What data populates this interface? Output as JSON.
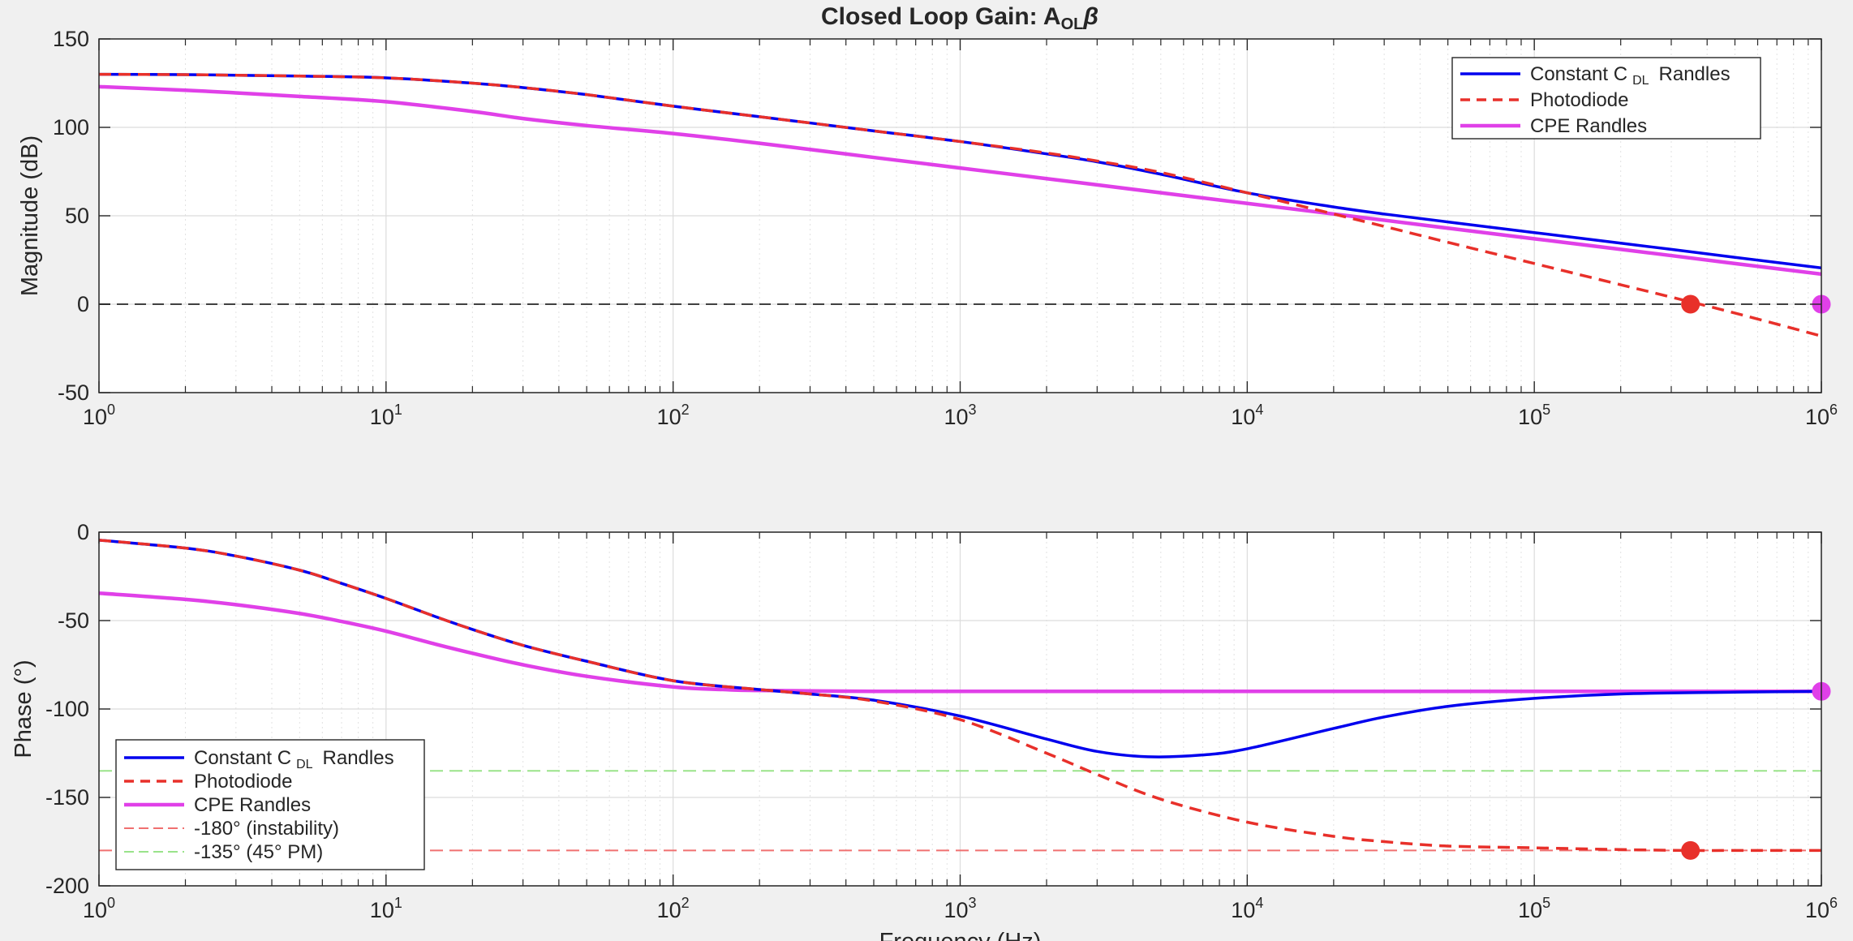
{
  "chart_data": [
    {
      "type": "line",
      "title": "Closed Loop Gain: A",
      "title_sub": "OL",
      "title_tail": "β",
      "xlabel": "",
      "ylabel": "Magnitude (dB)",
      "xscale": "log",
      "xlim": [
        1,
        1000000
      ],
      "ylim": [
        -50,
        150
      ],
      "yticks": [
        -50,
        0,
        50,
        100,
        150
      ],
      "xtick_labels": [
        "10^0",
        "10^1",
        "10^2",
        "10^3",
        "10^4",
        "10^5",
        "10^6"
      ],
      "grid": true,
      "legend_position": "top-right",
      "series": [
        {
          "name": "Constant C",
          "name_sub": "DL",
          "name_tail": "Randles",
          "color": "#0000ee",
          "style": "solid",
          "x": [
            1,
            2,
            3,
            5,
            10,
            20,
            30,
            50,
            100,
            200,
            300,
            500,
            1000,
            2000,
            3000,
            5000,
            10000,
            20000,
            30000,
            50000,
            100000,
            200000,
            300000,
            500000,
            1000000
          ],
          "y": [
            130,
            129.8,
            129.5,
            129,
            128,
            125,
            122.5,
            118.5,
            112,
            106,
            102.5,
            98,
            92,
            85,
            80.5,
            73.5,
            63,
            55,
            51,
            46.5,
            40.5,
            34.5,
            31,
            26.5,
            20.5
          ]
        },
        {
          "name": "Photodiode",
          "color": "#e8302a",
          "style": "dashed",
          "x": [
            1,
            2,
            3,
            5,
            10,
            20,
            30,
            50,
            100,
            200,
            300,
            500,
            1000,
            2000,
            3000,
            5000,
            10000,
            20000,
            30000,
            50000,
            100000,
            200000,
            300000,
            500000,
            1000000
          ],
          "y": [
            130,
            129.8,
            129.5,
            129,
            128,
            125,
            122.5,
            118.5,
            112,
            106,
            102.5,
            98,
            92,
            85.5,
            81,
            74.5,
            63,
            51,
            44,
            35,
            23,
            11,
            4,
            -5,
            -18
          ]
        },
        {
          "name": "CPE Randles",
          "color": "#e040e8",
          "style": "solid",
          "x": [
            1,
            2,
            3,
            5,
            10,
            20,
            30,
            50,
            100,
            200,
            300,
            500,
            1000,
            2000,
            3000,
            5000,
            10000,
            20000,
            30000,
            50000,
            100000,
            200000,
            300000,
            500000,
            1000000
          ],
          "y": [
            123,
            121,
            119.5,
            117.5,
            114.5,
            109,
            105,
            101,
            96.5,
            91,
            87.5,
            83,
            77,
            71,
            67.5,
            63,
            57,
            51,
            47.5,
            43,
            37,
            31,
            27.5,
            23,
            17
          ]
        }
      ],
      "reference_lines": [
        {
          "y": 0,
          "color": "#404040",
          "style": "dashed"
        }
      ],
      "markers": [
        {
          "x": 350000,
          "y": 0,
          "color": "#e8302a"
        },
        {
          "x": 1000000,
          "y": 0,
          "color": "#e040e8"
        }
      ]
    },
    {
      "type": "line",
      "title": "",
      "xlabel": "Frequency (Hz)",
      "ylabel": "Phase (°)",
      "xscale": "log",
      "xlim": [
        1,
        1000000
      ],
      "ylim": [
        -200,
        0
      ],
      "yticks": [
        -200,
        -150,
        -100,
        -50,
        0
      ],
      "xtick_labels": [
        "10^0",
        "10^1",
        "10^2",
        "10^3",
        "10^4",
        "10^5",
        "10^6"
      ],
      "grid": true,
      "legend_position": "bottom-left",
      "series": [
        {
          "name": "Constant C",
          "name_sub": "DL",
          "name_tail": "Randles",
          "color": "#0000ee",
          "style": "solid",
          "x": [
            1,
            2,
            3,
            5,
            7,
            10,
            15,
            20,
            30,
            50,
            100,
            200,
            300,
            500,
            1000,
            2000,
            3000,
            4500,
            7000,
            10000,
            20000,
            30000,
            50000,
            100000,
            200000,
            500000,
            1000000
          ],
          "y": [
            -4.5,
            -9,
            -13.5,
            -21.5,
            -29,
            -37.5,
            -48,
            -55,
            -64,
            -73,
            -84,
            -89,
            -91.5,
            -95,
            -104,
            -117,
            -124,
            -127,
            -126,
            -122.5,
            -111,
            -104.5,
            -98.5,
            -94,
            -91.5,
            -90.5,
            -90
          ]
        },
        {
          "name": "Photodiode",
          "color": "#e8302a",
          "style": "dashed",
          "x": [
            1,
            2,
            3,
            5,
            7,
            10,
            15,
            20,
            30,
            50,
            100,
            200,
            300,
            500,
            1000,
            2000,
            3000,
            5000,
            10000,
            20000,
            30000,
            50000,
            100000,
            200000,
            350000,
            500000,
            1000000
          ],
          "y": [
            -4.5,
            -9,
            -13.5,
            -21.5,
            -29,
            -37.5,
            -48,
            -55,
            -64,
            -73,
            -84,
            -89,
            -91.5,
            -95.5,
            -106,
            -125,
            -137,
            -151,
            -164,
            -172,
            -175,
            -177.5,
            -178.5,
            -179.5,
            -180,
            -180,
            -180
          ]
        },
        {
          "name": "CPE Randles",
          "color": "#e040e8",
          "style": "solid",
          "x": [
            1,
            2,
            3,
            5,
            7,
            10,
            15,
            20,
            30,
            50,
            100,
            150,
            200,
            500,
            1000,
            10000,
            100000,
            1000000
          ],
          "y": [
            -34.5,
            -38,
            -41,
            -46,
            -50.5,
            -56,
            -63.5,
            -68.5,
            -75,
            -81.5,
            -87.5,
            -89,
            -89.5,
            -90,
            -90,
            -90,
            -90,
            -90
          ]
        },
        {
          "name": "-180° (instability)",
          "color": "#f07070",
          "style": "dashed",
          "x": [
            1,
            1000000
          ],
          "y": [
            -180,
            -180
          ]
        },
        {
          "name": "-135° (45° PM)",
          "color": "#9ae38a",
          "style": "dashed",
          "x": [
            1,
            1000000
          ],
          "y": [
            -135,
            -135
          ]
        }
      ],
      "markers": [
        {
          "x": 350000,
          "y": -180,
          "color": "#e8302a"
        },
        {
          "x": 1000000,
          "y": -90,
          "color": "#e040e8"
        }
      ]
    }
  ]
}
